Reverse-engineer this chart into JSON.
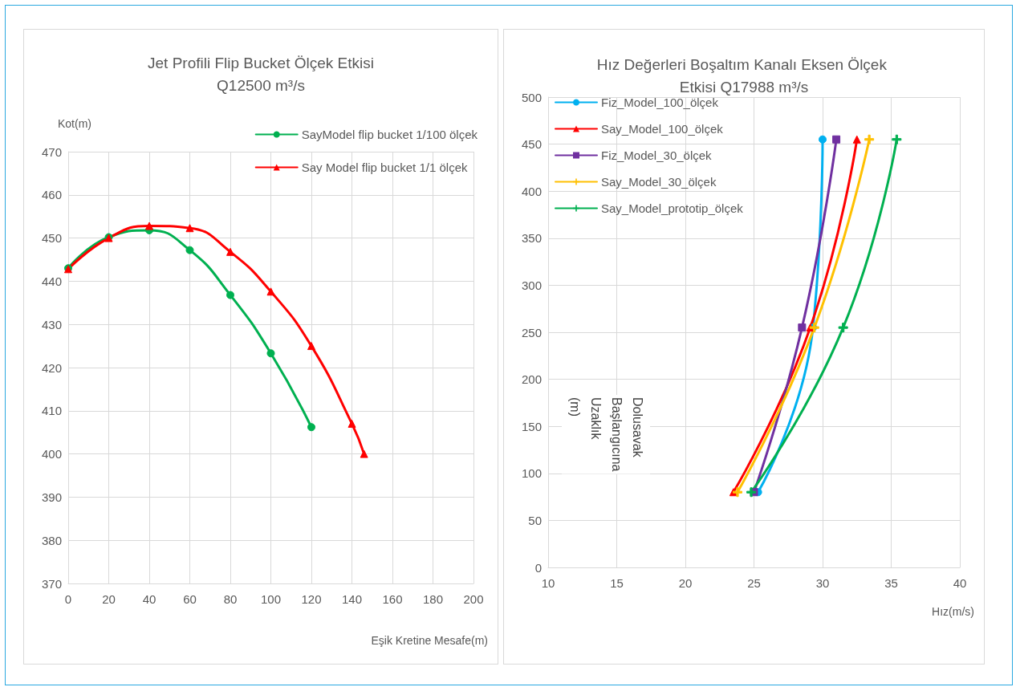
{
  "chart_data": [
    {
      "type": "line",
      "title": "Jet Profili Flip Bucket Ölçek Etkisi\nQ12500 m³/s",
      "xlabel": "Eşik Kretine Mesafe(m)",
      "ylabel": "Kot(m)",
      "xlim": [
        0,
        200
      ],
      "xticks": [
        0,
        20,
        40,
        60,
        80,
        100,
        120,
        140,
        160,
        180,
        200
      ],
      "ylim": [
        370,
        470
      ],
      "yticks": [
        370,
        380,
        390,
        400,
        410,
        420,
        430,
        440,
        450,
        460,
        470
      ],
      "grid": true,
      "legend": "top right",
      "line_style": "solid",
      "series": [
        {
          "name": "SayModel flip bucket 1/100 ölçek",
          "color": "#00b050",
          "marker": "circle",
          "x": [
            0,
            20,
            40,
            60,
            80,
            100,
            120
          ],
          "values": [
            443,
            450.2,
            451.8,
            447.2,
            436.8,
            423.3,
            406.2
          ]
        },
        {
          "name": "Say Model flip bucket 1/1 ölçek",
          "color": "#ff0000",
          "marker": "triangle",
          "x": [
            0,
            20,
            40,
            60,
            80,
            100,
            120,
            140,
            146
          ],
          "values": [
            442.8,
            450,
            452.8,
            452.3,
            446.8,
            437.6,
            425,
            407,
            400
          ]
        }
      ]
    },
    {
      "type": "line",
      "title": "Hız Değerleri Boşaltım Kanalı Eksen Ölçek Etkisi Q17988 m³/s",
      "xlabel": "Hız(m/s)",
      "ylabel": "Dolusavak Başlangıcına Uzaklık (m)",
      "xlim": [
        10,
        40
      ],
      "xticks": [
        10,
        15,
        20,
        25,
        30,
        35,
        40
      ],
      "ylim": [
        0,
        500
      ],
      "yticks": [
        0,
        50,
        100,
        150,
        200,
        250,
        300,
        350,
        400,
        450,
        500
      ],
      "grid": true,
      "legend": "top left",
      "line_style": "solid",
      "series": [
        {
          "name": "Fiz_Model_100_ölçek",
          "color": "#00b0f0",
          "marker": "circle",
          "x": [
            30,
            29.3,
            25.3
          ],
          "values": [
            455,
            255,
            80
          ]
        },
        {
          "name": "Say_Model_100_ölçek",
          "color": "#ff0000",
          "marker": "triangle",
          "x": [
            32.5,
            29.1,
            23.5
          ],
          "values": [
            455,
            255,
            80
          ]
        },
        {
          "name": "Fiz_Model_30_ölçek",
          "color": "#7030a0",
          "marker": "square",
          "x": [
            31,
            28.5,
            25
          ],
          "values": [
            455,
            255,
            80
          ]
        },
        {
          "name": "Say_Model_30_ölçek",
          "color": "#ffc000",
          "marker": "cross",
          "x": [
            33.4,
            29.4,
            23.8
          ],
          "values": [
            455,
            255,
            80
          ]
        },
        {
          "name": "Say_Model_prototip_ölçek",
          "color": "#00b050",
          "marker": "cross",
          "x": [
            35.4,
            31.5,
            24.8
          ],
          "values": [
            455,
            255,
            80
          ]
        }
      ]
    }
  ]
}
